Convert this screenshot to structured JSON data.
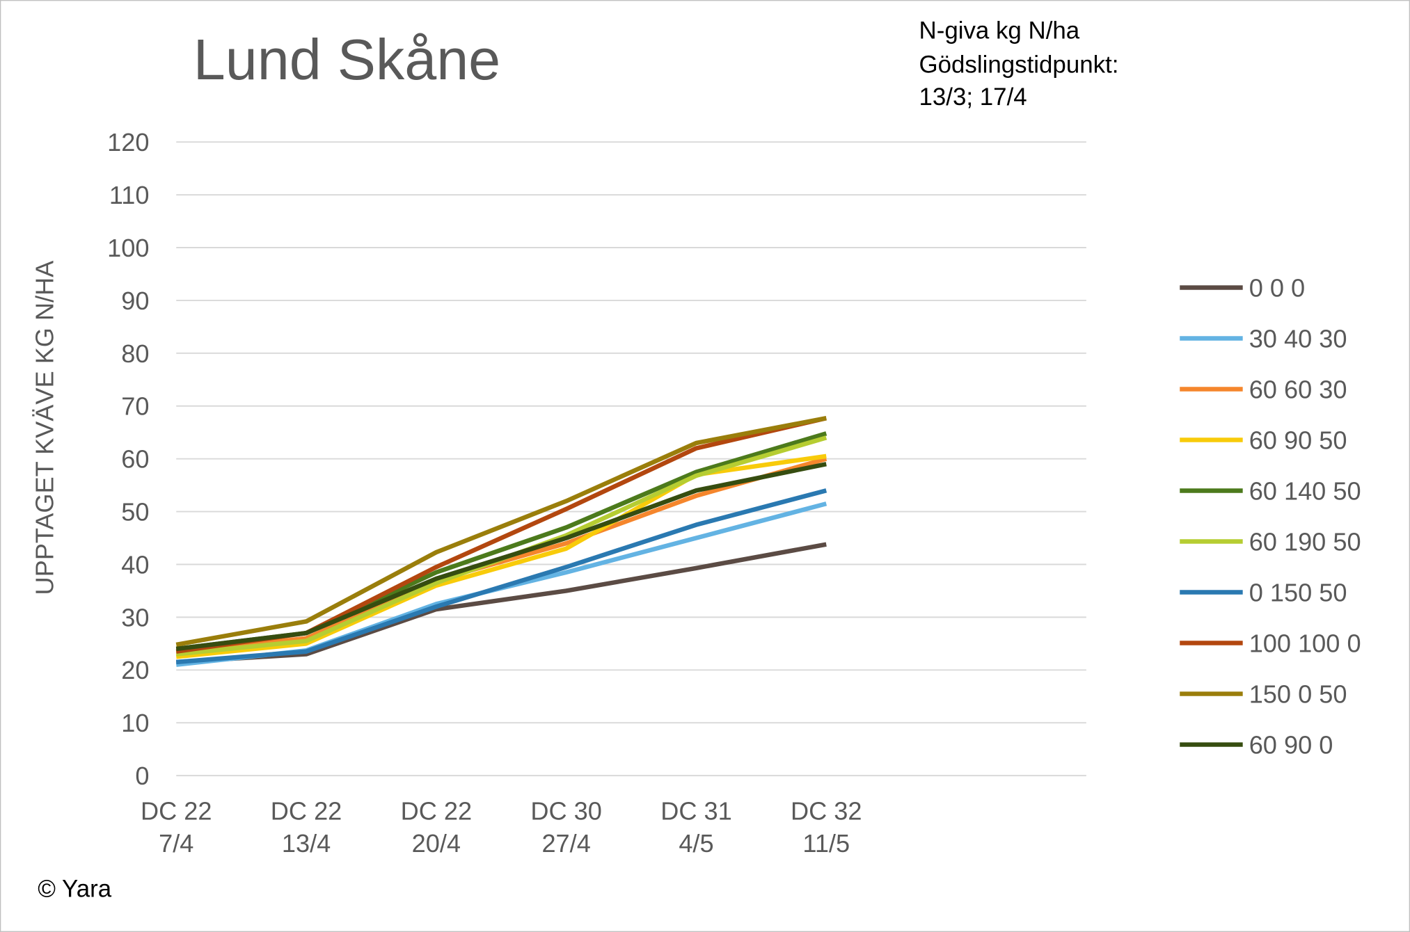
{
  "chart_data": {
    "type": "line",
    "title": "Lund Skåne",
    "notes": [
      "N-giva kg N/ha",
      "Gödslingstidpunkt:",
      "13/3; 17/4"
    ],
    "ylabel": "UPPTAGET KVÄVE KG N/HA",
    "source": "© Yara",
    "categories": [
      [
        "DC 22",
        "7/4"
      ],
      [
        "DC 22",
        "13/4"
      ],
      [
        "DC 22",
        "20/4"
      ],
      [
        "DC 30",
        "27/4"
      ],
      [
        "DC 31",
        "4/5"
      ],
      [
        "DC 32",
        "11/5"
      ],
      null,
      null
    ],
    "ylim": [
      0,
      120
    ],
    "yticks": [
      0,
      10,
      20,
      30,
      40,
      50,
      60,
      70,
      80,
      90,
      100,
      110,
      120
    ],
    "grid": true,
    "legend": "right",
    "series": [
      {
        "name": "0 0 0",
        "color": "#5b4b44",
        "values": [
          21.5,
          23,
          31.5,
          35,
          39.3,
          43.8,
          null,
          null
        ]
      },
      {
        "name": "30 40 30",
        "color": "#63b3e3",
        "values": [
          21,
          23.7,
          32.5,
          38.5,
          45,
          51.5,
          null,
          null
        ]
      },
      {
        "name": "60 60 30",
        "color": "#f5862c",
        "values": [
          23.3,
          26,
          37,
          44,
          53,
          60,
          null,
          null
        ]
      },
      {
        "name": "60 90 50",
        "color": "#f8cb0a",
        "values": [
          22.5,
          25,
          36,
          43,
          57,
          60.5,
          null,
          null
        ]
      },
      {
        "name": "60 140 50",
        "color": "#4c7a1c",
        "values": [
          24,
          27,
          38.5,
          47,
          57.5,
          64.8,
          null,
          null
        ]
      },
      {
        "name": "60 190 50",
        "color": "#b6cd32",
        "values": [
          23,
          25.5,
          36.5,
          45.5,
          56.8,
          64,
          null,
          null
        ]
      },
      {
        "name": "0 150 50",
        "color": "#2a79b1",
        "values": [
          21.5,
          23.5,
          32,
          39.5,
          47.5,
          54,
          null,
          null
        ]
      },
      {
        "name": "100 100 0",
        "color": "#b3470f",
        "values": [
          23.5,
          27,
          39.5,
          50.5,
          62,
          67.7,
          null,
          null
        ]
      },
      {
        "name": "150 0 50",
        "color": "#9a7e0b",
        "values": [
          24.8,
          29.2,
          42.3,
          52,
          63,
          67.7,
          null,
          null
        ]
      },
      {
        "name": "60 90 0",
        "color": "#364d10",
        "values": [
          24,
          27,
          37.3,
          45,
          54,
          59,
          null,
          null
        ]
      }
    ]
  }
}
